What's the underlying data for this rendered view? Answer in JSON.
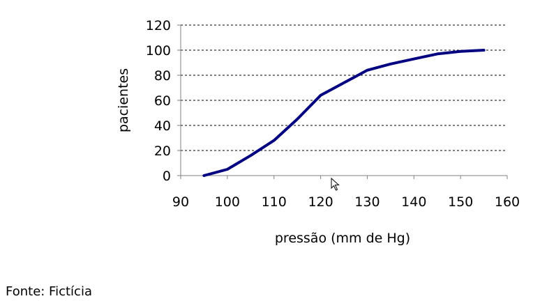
{
  "chart_data": {
    "type": "line",
    "title": "",
    "xlabel": "pressão (mm de Hg)",
    "ylabel": "pacientes",
    "xlim": [
      90,
      160
    ],
    "ylim": [
      0,
      120
    ],
    "x_ticks": [
      90,
      100,
      110,
      120,
      130,
      140,
      150,
      160
    ],
    "y_ticks": [
      0,
      20,
      40,
      60,
      80,
      100,
      120
    ],
    "grid": "horizontal dashed",
    "legend": "none",
    "line_color": "#000080",
    "series": [
      {
        "x": [
          95,
          100,
          105,
          110,
          115,
          120,
          125,
          130,
          135,
          140,
          145,
          150,
          155
        ],
        "values": [
          0,
          5,
          16,
          28,
          45,
          64,
          74,
          84,
          89,
          93,
          97,
          99,
          100
        ]
      }
    ]
  },
  "source_note": "Fonte: Fictícia",
  "cursor_icon": "arrow-pointer-icon"
}
